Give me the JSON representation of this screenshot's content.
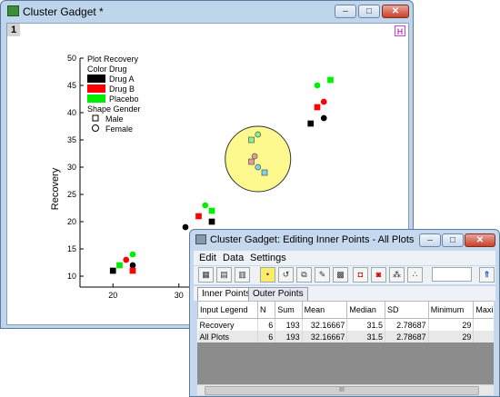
{
  "main_window": {
    "title": "Cluster Gadget *",
    "page_number": "1",
    "h_badge": "H",
    "minimize": "–",
    "maximize": "□",
    "close": "✕"
  },
  "chart_data": {
    "type": "scatter",
    "ylabel": "Recovery",
    "xlabel": "",
    "xticks": [
      "20",
      "30"
    ],
    "yticks": [
      "10",
      "15",
      "20",
      "25",
      "30",
      "35",
      "40",
      "45",
      "50"
    ],
    "xlim": [
      15,
      55
    ],
    "ylim": [
      8,
      50
    ],
    "legend": {
      "title1": "Plot Recovery",
      "title2": "Color Drug",
      "color_entries": [
        {
          "label": "Drug A",
          "color": "#000000"
        },
        {
          "label": "Drug B",
          "color": "#ff0000"
        },
        {
          "label": "Placebo",
          "color": "#00ee00"
        }
      ],
      "title3": "Shape Gender",
      "shape_entries": [
        {
          "label": "Male",
          "shape": "square"
        },
        {
          "label": "Female",
          "shape": "circle"
        }
      ]
    },
    "roi_circle": {
      "cx": 42,
      "cy": 31.5,
      "color": "#fdf98e"
    },
    "points": [
      {
        "x": 20,
        "y": 11,
        "group": "Drug A",
        "shape": "square"
      },
      {
        "x": 21,
        "y": 12,
        "group": "Placebo",
        "shape": "square"
      },
      {
        "x": 22,
        "y": 13,
        "group": "Drug B",
        "shape": "circle"
      },
      {
        "x": 23,
        "y": 14,
        "group": "Placebo",
        "shape": "circle"
      },
      {
        "x": 23,
        "y": 12,
        "group": "Drug A",
        "shape": "circle"
      },
      {
        "x": 23,
        "y": 11,
        "group": "Drug B",
        "shape": "square"
      },
      {
        "x": 31,
        "y": 19,
        "group": "Drug A",
        "shape": "circle"
      },
      {
        "x": 33,
        "y": 18,
        "group": "Drug B",
        "shape": "circle"
      },
      {
        "x": 33,
        "y": 21,
        "group": "Drug B",
        "shape": "square"
      },
      {
        "x": 34,
        "y": 23,
        "group": "Placebo",
        "shape": "circle"
      },
      {
        "x": 35,
        "y": 22,
        "group": "Placebo",
        "shape": "square"
      },
      {
        "x": 35,
        "y": 20,
        "group": "Drug A",
        "shape": "square"
      },
      {
        "x": 41,
        "y": 35,
        "group": "Placebo",
        "shape": "square"
      },
      {
        "x": 42,
        "y": 36,
        "group": "Placebo",
        "shape": "circle"
      },
      {
        "x": 41,
        "y": 31,
        "group": "Drug B",
        "shape": "square"
      },
      {
        "x": 41.5,
        "y": 32,
        "group": "Drug B",
        "shape": "circle"
      },
      {
        "x": 42,
        "y": 30,
        "group": "Drug A",
        "shape": "circle"
      },
      {
        "x": 43,
        "y": 29,
        "group": "Drug A",
        "shape": "square"
      },
      {
        "x": 50,
        "y": 38,
        "group": "Drug A",
        "shape": "square"
      },
      {
        "x": 51,
        "y": 41,
        "group": "Drug B",
        "shape": "square"
      },
      {
        "x": 52,
        "y": 42,
        "group": "Drug B",
        "shape": "circle"
      },
      {
        "x": 52,
        "y": 39,
        "group": "Drug A",
        "shape": "circle"
      },
      {
        "x": 51,
        "y": 45,
        "group": "Placebo",
        "shape": "circle"
      },
      {
        "x": 53,
        "y": 46,
        "group": "Placebo",
        "shape": "square"
      }
    ]
  },
  "dialog": {
    "title": "Cluster Gadget: Editing Inner Points - All Plots",
    "minimize": "–",
    "maximize": "□",
    "close": "✕",
    "menu": [
      "Edit",
      "Data",
      "Settings"
    ],
    "toolbar_icons": [
      "table-icon",
      "worksheet-icon",
      "statistics-icon",
      "highlight-icon",
      "undo-icon",
      "copy-icon",
      "pen-icon",
      "color-icon",
      "mask-icon",
      "unmask-icon",
      "cluster-icon",
      "scatter-icon"
    ],
    "expand_button": "⇑",
    "tabs": [
      "Inner Points",
      "Outer Points"
    ],
    "table": {
      "headers": [
        "Input Legend",
        "N",
        "Sum",
        "Mean",
        "Median",
        "SD",
        "Minimum",
        "Maxim"
      ],
      "rows": [
        [
          "Recovery",
          "6",
          "193",
          "32.16667",
          "31.5",
          "2.78687",
          "29",
          ""
        ],
        [
          "All Plots",
          "6",
          "193",
          "32.16667",
          "31.5",
          "2.78687",
          "29",
          ""
        ]
      ]
    },
    "scrollbar_grip": "III"
  }
}
